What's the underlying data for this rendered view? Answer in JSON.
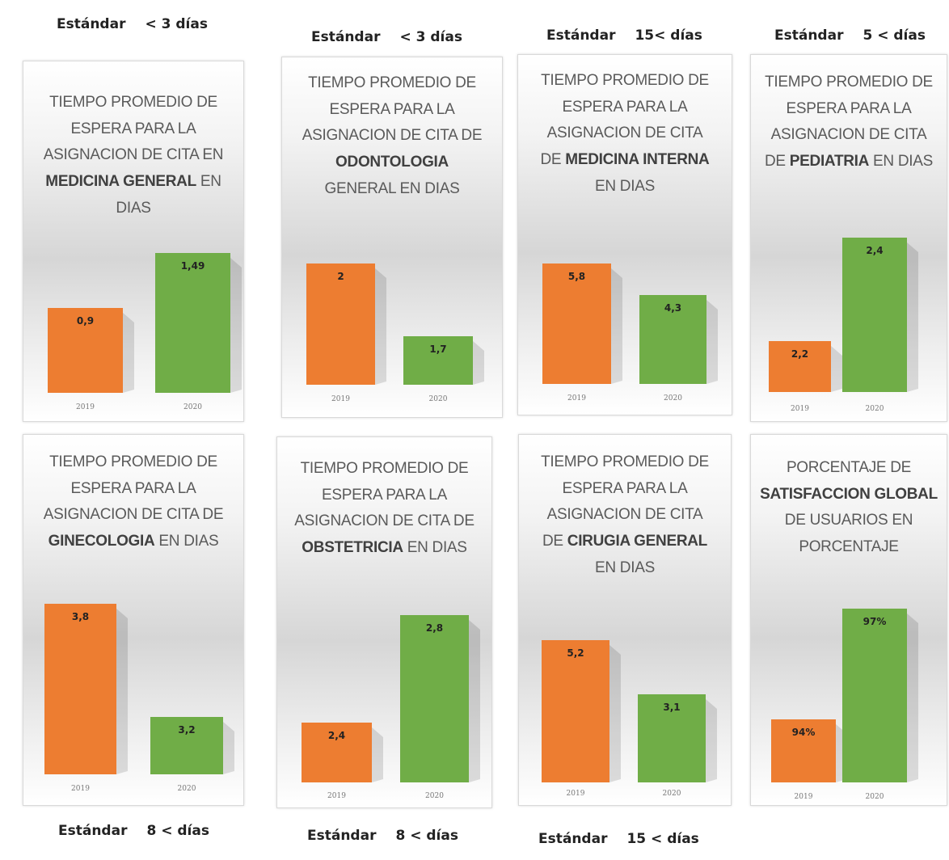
{
  "standards_top": [
    {
      "label": "Estándar",
      "value": "< 3 días"
    },
    {
      "label": "Estándar",
      "value": "< 3 días"
    },
    {
      "label": "Estándar",
      "value": "15< días"
    },
    {
      "label": "Estándar",
      "value": "5 < días"
    }
  ],
  "standards_bottom": [
    {
      "label": "Estándar",
      "value": "8 < días"
    },
    {
      "label": "Estándar",
      "value": "8 < días"
    },
    {
      "label": "Estándar",
      "value": "15 < días"
    }
  ],
  "colors": {
    "y2019": "#ed7d31",
    "y2020": "#70ad47"
  },
  "cards": [
    {
      "title_lines": [
        [
          [
            "TIEMPO PROMEDIO DE",
            false
          ]
        ],
        [
          [
            "ESPERA PARA LA",
            false
          ]
        ],
        [
          [
            "ASIGNACION DE CITA EN",
            false
          ]
        ],
        [
          [
            "MEDICINA GENERAL",
            true
          ],
          [
            " EN",
            false
          ]
        ],
        [
          [
            "DIAS",
            false
          ]
        ]
      ]
    },
    {
      "title_lines": [
        [
          [
            "TIEMPO PROMEDIO DE",
            false
          ]
        ],
        [
          [
            "ESPERA PARA LA",
            false
          ]
        ],
        [
          [
            "ASIGNACION DE CITA DE",
            false
          ]
        ],
        [
          [
            "ODONTOLOGIA",
            true
          ]
        ],
        [
          [
            "GENERAL  EN DIAS",
            false
          ]
        ]
      ]
    },
    {
      "title_lines": [
        [
          [
            "TIEMPO PROMEDIO DE",
            false
          ]
        ],
        [
          [
            "ESPERA PARA LA",
            false
          ]
        ],
        [
          [
            "ASIGNACION DE CITA",
            false
          ]
        ],
        [
          [
            "DE ",
            false
          ],
          [
            "MEDICINA INTERNA",
            true
          ]
        ],
        [
          [
            "EN DIAS",
            false
          ]
        ]
      ]
    },
    {
      "title_lines": [
        [
          [
            "TIEMPO PROMEDIO DE",
            false
          ]
        ],
        [
          [
            "ESPERA PARA LA",
            false
          ]
        ],
        [
          [
            "ASIGNACION DE CITA",
            false
          ]
        ],
        [
          [
            "DE ",
            false
          ],
          [
            "PEDIATRIA",
            true
          ],
          [
            "  EN DIAS",
            false
          ]
        ]
      ]
    },
    {
      "title_lines": [
        [
          [
            "TIEMPO PROMEDIO DE",
            false
          ]
        ],
        [
          [
            "ESPERA PARA LA",
            false
          ]
        ],
        [
          [
            "ASIGNACION DE CITA DE",
            false
          ]
        ],
        [
          [
            "GINECOLOGIA",
            true
          ],
          [
            " EN DIAS",
            false
          ]
        ]
      ]
    },
    {
      "title_lines": [
        [
          [
            "TIEMPO PROMEDIO DE",
            false
          ]
        ],
        [
          [
            "ESPERA PARA LA",
            false
          ]
        ],
        [
          [
            "ASIGNACION DE CITA DE",
            false
          ]
        ],
        [
          [
            "OBSTETRICIA",
            true
          ],
          [
            " EN DIAS",
            false
          ]
        ]
      ]
    },
    {
      "title_lines": [
        [
          [
            "TIEMPO PROMEDIO DE",
            false
          ]
        ],
        [
          [
            "ESPERA PARA LA",
            false
          ]
        ],
        [
          [
            "ASIGNACION DE CITA",
            false
          ]
        ],
        [
          [
            "DE ",
            false
          ],
          [
            "CIRUGIA GENERAL",
            true
          ]
        ],
        [
          [
            "EN DIAS",
            false
          ]
        ]
      ]
    },
    {
      "title_lines": [
        [
          [
            "PORCENTAJE DE",
            false
          ]
        ],
        [
          [
            "SATISFACCION GLOBAL",
            true
          ]
        ],
        [
          [
            "DE USUARIOS  EN",
            false
          ]
        ],
        [
          [
            "PORCENTAJE",
            false
          ]
        ]
      ]
    }
  ],
  "chart_data": [
    {
      "type": "bar",
      "categories": [
        "2019",
        "2020"
      ],
      "values": [
        0.9,
        1.49
      ],
      "labels": [
        "0,9",
        "1,49"
      ]
    },
    {
      "type": "bar",
      "categories": [
        "2019",
        "2020"
      ],
      "values": [
        2,
        1.7
      ],
      "labels": [
        "2",
        "1,7"
      ]
    },
    {
      "type": "bar",
      "categories": [
        "2019",
        "2020"
      ],
      "values": [
        5.8,
        4.3
      ],
      "labels": [
        "5,8",
        "4,3"
      ]
    },
    {
      "type": "bar",
      "categories": [
        "2019",
        "2020"
      ],
      "values": [
        2.2,
        2.4
      ],
      "labels": [
        "2,2",
        "2,4"
      ]
    },
    {
      "type": "bar",
      "categories": [
        "2019",
        "2020"
      ],
      "values": [
        3.8,
        3.2
      ],
      "labels": [
        "3,8",
        "3,2"
      ]
    },
    {
      "type": "bar",
      "categories": [
        "2019",
        "2020"
      ],
      "values": [
        2.4,
        2.8
      ],
      "labels": [
        "2,4",
        "2,8"
      ]
    },
    {
      "type": "bar",
      "categories": [
        "2019",
        "2020"
      ],
      "values": [
        5.2,
        3.1
      ],
      "labels": [
        "5,2",
        "3,1"
      ]
    },
    {
      "type": "bar",
      "categories": [
        "2019",
        "2020"
      ],
      "values": [
        94,
        97
      ],
      "labels": [
        "94%",
        "97%"
      ]
    }
  ]
}
